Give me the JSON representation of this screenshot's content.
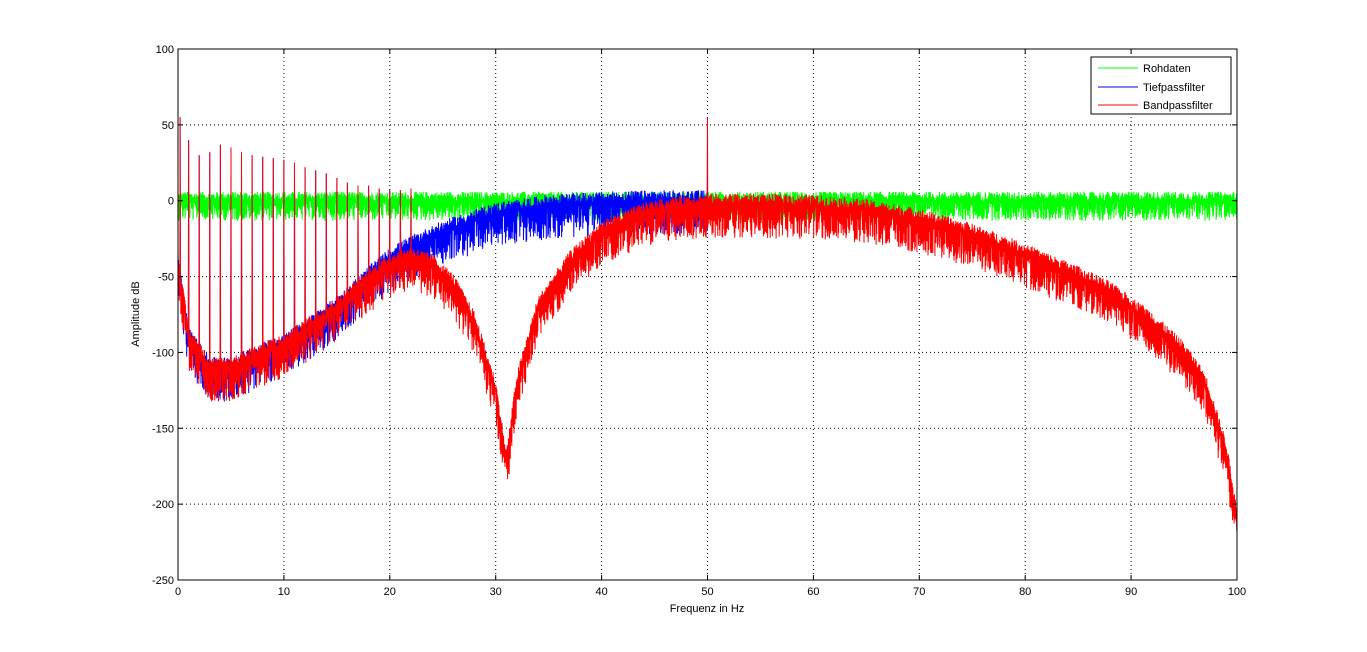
{
  "chart_data": {
    "type": "line",
    "title": "",
    "xlabel": "Frequenz in Hz",
    "ylabel": "Amplitude dB",
    "xlim": [
      0,
      100
    ],
    "ylim": [
      -250,
      100
    ],
    "xticks": [
      0,
      10,
      20,
      30,
      40,
      50,
      60,
      70,
      80,
      90,
      100
    ],
    "yticks": [
      100,
      50,
      0,
      -50,
      -100,
      -150,
      -200,
      -250
    ],
    "grid": true,
    "legend_position": "top-right",
    "series": [
      {
        "name": "Rohdaten",
        "color": "#00ff00",
        "noise_db": 12,
        "envelope": [
          [
            0,
            0
          ],
          [
            100,
            0
          ]
        ]
      },
      {
        "name": "Tiefpassfilter",
        "color": "#0000ff",
        "noise_db": 14,
        "envelope": [
          [
            0,
            -40
          ],
          [
            1,
            -90
          ],
          [
            3,
            -110
          ],
          [
            5,
            -110
          ],
          [
            8,
            -100
          ],
          [
            10,
            -95
          ],
          [
            12,
            -85
          ],
          [
            15,
            -70
          ],
          [
            18,
            -50
          ],
          [
            20,
            -38
          ],
          [
            22,
            -30
          ],
          [
            25,
            -20
          ],
          [
            30,
            -8
          ],
          [
            35,
            -3
          ],
          [
            40,
            -1
          ],
          [
            45,
            0
          ],
          [
            50,
            0
          ]
        ]
      },
      {
        "name": "Bandpassfilter",
        "color": "#ff0000",
        "noise_db": 14,
        "envelope": [
          [
            0,
            -40
          ],
          [
            1,
            -90
          ],
          [
            3,
            -110
          ],
          [
            5,
            -110
          ],
          [
            8,
            -100
          ],
          [
            10,
            -95
          ],
          [
            12,
            -85
          ],
          [
            15,
            -70
          ],
          [
            18,
            -52
          ],
          [
            20,
            -42
          ],
          [
            22,
            -37
          ],
          [
            24,
            -42
          ],
          [
            26,
            -55
          ],
          [
            28,
            -80
          ],
          [
            30,
            -125
          ],
          [
            31,
            -172
          ],
          [
            32,
            -120
          ],
          [
            34,
            -70
          ],
          [
            37,
            -40
          ],
          [
            40,
            -20
          ],
          [
            44,
            -8
          ],
          [
            48,
            -3
          ],
          [
            52,
            -2
          ],
          [
            60,
            -3
          ],
          [
            65,
            -6
          ],
          [
            70,
            -12
          ],
          [
            75,
            -22
          ],
          [
            80,
            -35
          ],
          [
            85,
            -50
          ],
          [
            88,
            -60
          ],
          [
            92,
            -80
          ],
          [
            95,
            -100
          ],
          [
            97,
            -120
          ],
          [
            99,
            -165
          ],
          [
            100,
            -210
          ]
        ]
      }
    ],
    "harmonic_spikes_db": [
      [
        0.2,
        55
      ],
      [
        1,
        40
      ],
      [
        2,
        30
      ],
      [
        3,
        32
      ],
      [
        4,
        37
      ],
      [
        5,
        35
      ],
      [
        6,
        32
      ],
      [
        7,
        30
      ],
      [
        8,
        29
      ],
      [
        9,
        28
      ],
      [
        10,
        27
      ],
      [
        11,
        25
      ],
      [
        12,
        22
      ],
      [
        13,
        20
      ],
      [
        14,
        18
      ],
      [
        15,
        15
      ],
      [
        16,
        12
      ],
      [
        17,
        10
      ],
      [
        18,
        10
      ],
      [
        19,
        8
      ],
      [
        20,
        7
      ],
      [
        21,
        7
      ],
      [
        22,
        8
      ]
    ],
    "spike_50hz_db": 55
  }
}
